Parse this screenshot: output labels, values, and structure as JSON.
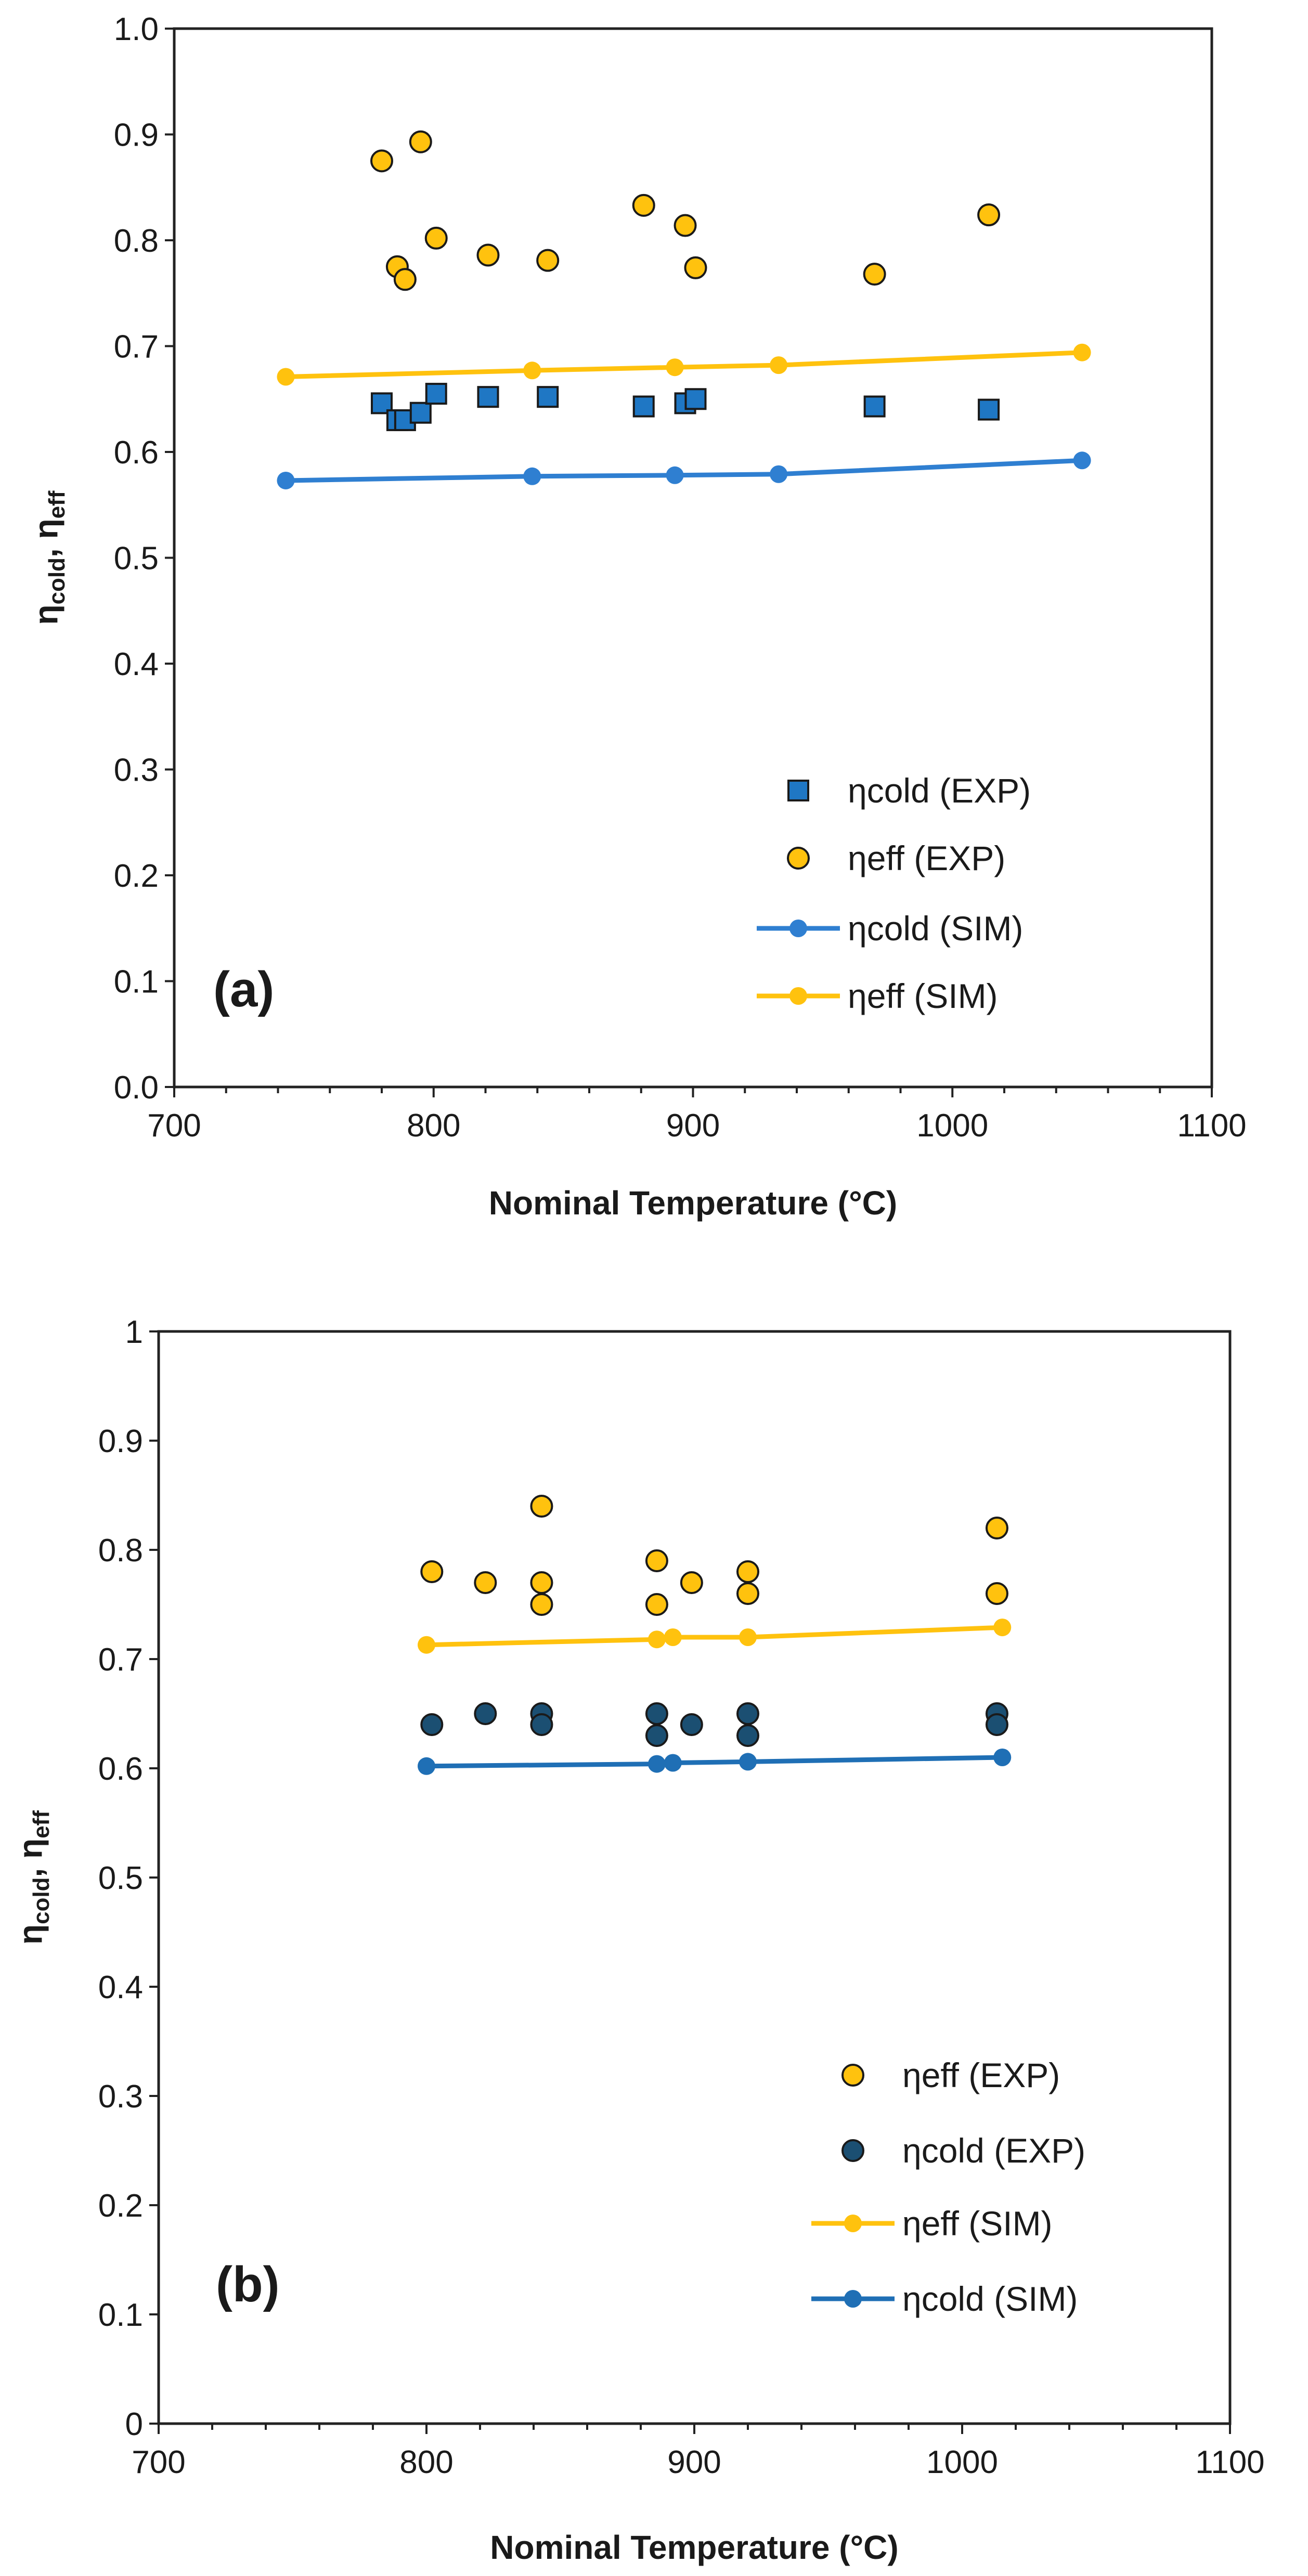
{
  "chart_data": [
    {
      "type": "scatter",
      "panel_label": "(a)",
      "xlabel": "Nominal Temperature (°C)",
      "ylabel": {
        "base": "η",
        "sub1": "cold",
        "sep": ", η",
        "sub2": "eff"
      },
      "xlim": [
        700,
        1100
      ],
      "ylim": [
        0,
        1
      ],
      "xticks": [
        700,
        800,
        900,
        1000,
        1100
      ],
      "xtick_labels": [
        "700",
        "800",
        "900",
        "1000",
        "1100"
      ],
      "yticks": [
        0,
        0.1,
        0.2,
        0.3,
        0.4,
        0.5,
        0.6,
        0.7,
        0.8,
        0.9,
        1.0
      ],
      "ytick_labels": [
        "0.0",
        "0.1",
        "0.2",
        "0.3",
        "0.4",
        "0.5",
        "0.6",
        "0.7",
        "0.8",
        "0.9",
        "1.0"
      ],
      "legend_position": "bottom-right",
      "series": [
        {
          "name": "ηcold (EXP)",
          "kind": "marker",
          "marker": "square",
          "color": "#1f77c4",
          "x": [
            780,
            786,
            789,
            795,
            801,
            821,
            844,
            881,
            897,
            901,
            970,
            1014
          ],
          "y": [
            0.646,
            0.63,
            0.63,
            0.637,
            0.655,
            0.652,
            0.652,
            0.643,
            0.646,
            0.65,
            0.643,
            0.64
          ]
        },
        {
          "name": "ηeff (EXP)",
          "kind": "marker",
          "marker": "circle",
          "color": "#ffc20e",
          "x": [
            780,
            786,
            789,
            795,
            801,
            821,
            844,
            881,
            897,
            901,
            970,
            1014
          ],
          "y": [
            0.875,
            0.775,
            0.763,
            0.893,
            0.802,
            0.786,
            0.781,
            0.833,
            0.814,
            0.774,
            0.768,
            0.824
          ]
        },
        {
          "name": "ηcold (SIM)",
          "kind": "line",
          "marker": "circle",
          "color": "#2f7fd1",
          "x": [
            743,
            838,
            893,
            933,
            1050
          ],
          "y": [
            0.573,
            0.577,
            0.578,
            0.579,
            0.592
          ]
        },
        {
          "name": "ηeff (SIM)",
          "kind": "line",
          "marker": "circle",
          "color": "#ffc20e",
          "x": [
            743,
            838,
            893,
            933,
            1050
          ],
          "y": [
            0.671,
            0.677,
            0.68,
            0.682,
            0.694
          ]
        }
      ]
    },
    {
      "type": "scatter",
      "panel_label": "(b)",
      "xlabel": "Nominal Temperature (°C)",
      "ylabel": {
        "base": "η",
        "sub1": "cold",
        "sep": ", η",
        "sub2": "eff"
      },
      "xlim": [
        700,
        1100
      ],
      "ylim": [
        0,
        1
      ],
      "xticks": [
        700,
        800,
        900,
        1000,
        1100
      ],
      "xtick_labels": [
        "700",
        "800",
        "900",
        "1000",
        "1100"
      ],
      "yticks": [
        0,
        0.1,
        0.2,
        0.3,
        0.4,
        0.5,
        0.6,
        0.7,
        0.8,
        0.9,
        1
      ],
      "ytick_labels": [
        "0",
        "0.1",
        "0.2",
        "0.3",
        "0.4",
        "0.5",
        "0.6",
        "0.7",
        "0.8",
        "0.9",
        "1"
      ],
      "legend_position": "bottom-right",
      "series": [
        {
          "name": "ηeff (EXP)",
          "kind": "marker",
          "marker": "circle",
          "color": "#ffc20e",
          "x": [
            802,
            822,
            843,
            843,
            843,
            886,
            886,
            899,
            920,
            920,
            1013,
            1013
          ],
          "y": [
            0.78,
            0.77,
            0.84,
            0.77,
            0.75,
            0.79,
            0.75,
            0.77,
            0.78,
            0.76,
            0.82,
            0.76
          ]
        },
        {
          "name": "ηcold (EXP)",
          "kind": "marker",
          "marker": "circle",
          "color": "#1b4f72",
          "x": [
            802,
            822,
            843,
            843,
            886,
            886,
            899,
            920,
            920,
            1013,
            1013
          ],
          "y": [
            0.64,
            0.65,
            0.65,
            0.64,
            0.65,
            0.63,
            0.64,
            0.65,
            0.63,
            0.65,
            0.64
          ]
        },
        {
          "name": "ηeff (SIM)",
          "kind": "line",
          "marker": "circle",
          "color": "#ffc20e",
          "x": [
            800,
            886,
            892,
            920,
            1015
          ],
          "y": [
            0.713,
            0.718,
            0.72,
            0.72,
            0.729
          ]
        },
        {
          "name": "ηcold (SIM)",
          "kind": "line",
          "marker": "circle",
          "color": "#1f6fb5",
          "x": [
            800,
            886,
            892,
            920,
            1015
          ],
          "y": [
            0.602,
            0.604,
            0.605,
            0.606,
            0.61
          ]
        }
      ]
    }
  ]
}
